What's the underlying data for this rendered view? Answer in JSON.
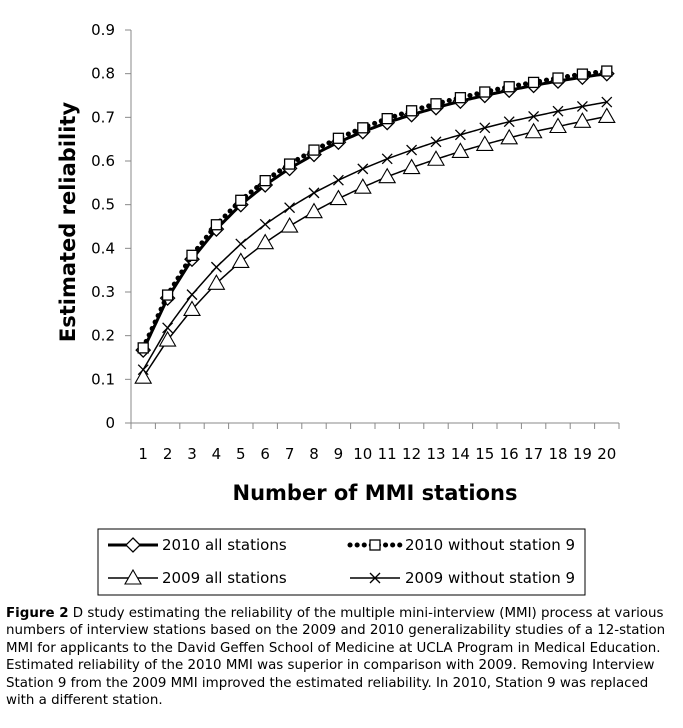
{
  "chart_data": {
    "type": "line",
    "xlabel": "Number of MMI stations",
    "ylabel": "Estimated reliability",
    "xlim": [
      1,
      20
    ],
    "ylim": [
      0,
      0.9
    ],
    "x": [
      1,
      2,
      3,
      4,
      5,
      6,
      7,
      8,
      9,
      10,
      11,
      12,
      13,
      14,
      15,
      16,
      17,
      18,
      19,
      20
    ],
    "y_ticks": [
      "0",
      "0.1",
      "0.2",
      "0.3",
      "0.4",
      "0.5",
      "0.6",
      "0.7",
      "0.8",
      "0.9"
    ],
    "x_ticks": [
      "1",
      "2",
      "3",
      "4",
      "5",
      "6",
      "7",
      "8",
      "9",
      "10",
      "11",
      "12",
      "13",
      "14",
      "15",
      "16",
      "17",
      "18",
      "19",
      "20"
    ],
    "grid": false,
    "legend_position": "bottom",
    "series": [
      {
        "name": "2010 all stations",
        "marker": "diamond",
        "line": "solid-thick",
        "values": [
          0.167,
          0.286,
          0.375,
          0.444,
          0.5,
          0.545,
          0.583,
          0.615,
          0.643,
          0.667,
          0.688,
          0.706,
          0.722,
          0.737,
          0.75,
          0.762,
          0.773,
          0.783,
          0.792,
          0.8
        ]
      },
      {
        "name": "2010 without station 9",
        "marker": "square",
        "line": "dotted",
        "values": [
          0.172,
          0.293,
          0.384,
          0.454,
          0.51,
          0.555,
          0.593,
          0.625,
          0.652,
          0.676,
          0.697,
          0.715,
          0.731,
          0.745,
          0.758,
          0.77,
          0.78,
          0.79,
          0.799,
          0.806
        ]
      },
      {
        "name": "2009 all stations",
        "marker": "triangle",
        "line": "solid",
        "values": [
          0.105,
          0.19,
          0.26,
          0.32,
          0.37,
          0.413,
          0.451,
          0.484,
          0.514,
          0.54,
          0.564,
          0.585,
          0.604,
          0.622,
          0.638,
          0.653,
          0.667,
          0.679,
          0.691,
          0.702
        ]
      },
      {
        "name": "2009 without station 9",
        "marker": "x",
        "line": "solid",
        "values": [
          0.122,
          0.218,
          0.294,
          0.357,
          0.41,
          0.455,
          0.493,
          0.527,
          0.556,
          0.582,
          0.605,
          0.625,
          0.644,
          0.66,
          0.676,
          0.69,
          0.702,
          0.714,
          0.725,
          0.735
        ]
      }
    ]
  },
  "caption": {
    "label": "Figure 2",
    "text": " D study estimating the reliability of the multiple mini-interview (MMI) process at various numbers of interview stations based on the 2009 and 2010 generalizability studies of a 12-station MMI for applicants to the David Geffen School of Medicine at UCLA Program in Medical Education. Estimated reliability of the 2010 MMI was superior in comparison with 2009. Removing Interview Station 9 from the 2009 MMI improved the estimated reliability. In 2010, Station 9 was replaced with a different station."
  }
}
